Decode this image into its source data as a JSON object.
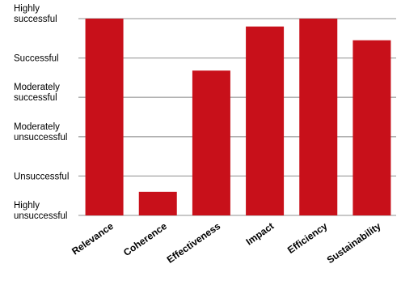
{
  "chart_data": {
    "type": "bar",
    "title": "",
    "xlabel": "",
    "ylabel": "",
    "categories": [
      "Relevance",
      "Coherence",
      "Effectiveness",
      "Impact",
      "Efficiency",
      "Sustainability"
    ],
    "values": [
      6.0,
      1.6,
      4.68,
      5.8,
      6.0,
      5.45
    ],
    "y_ticks": [
      {
        "value": 1,
        "label": [
          "Highly",
          "unsuccessful"
        ]
      },
      {
        "value": 2,
        "label": [
          "Unsuccessful"
        ]
      },
      {
        "value": 3,
        "label": [
          "Moderately",
          "unsuccessful"
        ]
      },
      {
        "value": 4,
        "label": [
          "Moderately",
          "successful"
        ]
      },
      {
        "value": 5,
        "label": [
          "Successful"
        ]
      },
      {
        "value": 6,
        "label": [
          "Highly",
          "successful"
        ]
      }
    ],
    "ylim": [
      1,
      6
    ],
    "grid": true,
    "legend": "none",
    "bar_color": "#c8101a",
    "grid_color": "#a6a6a6"
  }
}
